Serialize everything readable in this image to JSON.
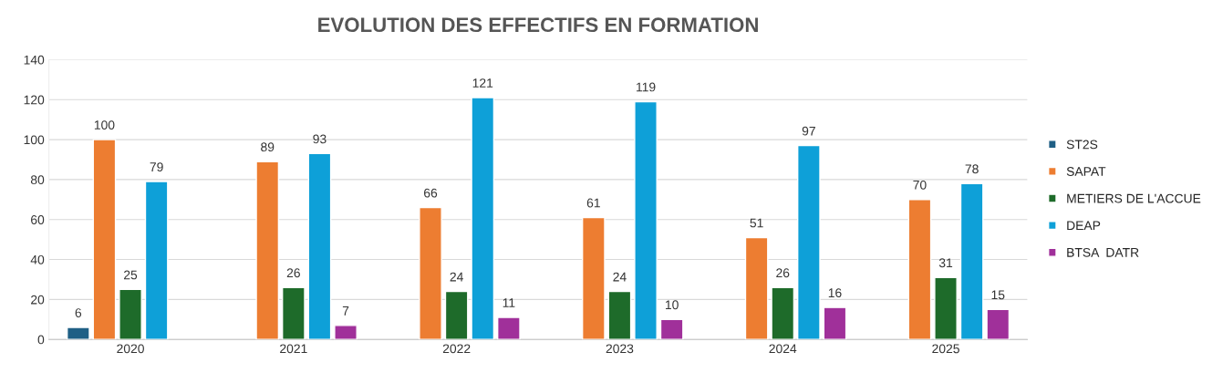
{
  "chart_data": {
    "type": "bar",
    "title": "EVOLUTION DES EFFECTIFS EN FORMATION",
    "categories": [
      "2020",
      "2021",
      "2022",
      "2023",
      "2024",
      "2025"
    ],
    "series": [
      {
        "name": "ST2S",
        "color": "#1f5f85",
        "values": [
          6,
          null,
          null,
          null,
          null,
          null
        ]
      },
      {
        "name": "SAPAT",
        "color": "#ed7d31",
        "values": [
          100,
          89,
          66,
          61,
          51,
          70
        ]
      },
      {
        "name": "METIERS DE L'ACCUE",
        "color": "#1e6b2a",
        "values": [
          25,
          26,
          24,
          24,
          26,
          31
        ]
      },
      {
        "name": "DEAP",
        "color": "#0ea0d8",
        "values": [
          79,
          93,
          121,
          119,
          97,
          78
        ]
      },
      {
        "name": "BTSA  DATR",
        "color": "#a0309a",
        "values": [
          null,
          7,
          11,
          10,
          16,
          15
        ]
      }
    ],
    "ylim": [
      0,
      140
    ],
    "yticks": [
      0,
      20,
      40,
      60,
      80,
      100,
      120,
      140
    ],
    "grid": "y",
    "legend": "right",
    "data_labels": true
  }
}
